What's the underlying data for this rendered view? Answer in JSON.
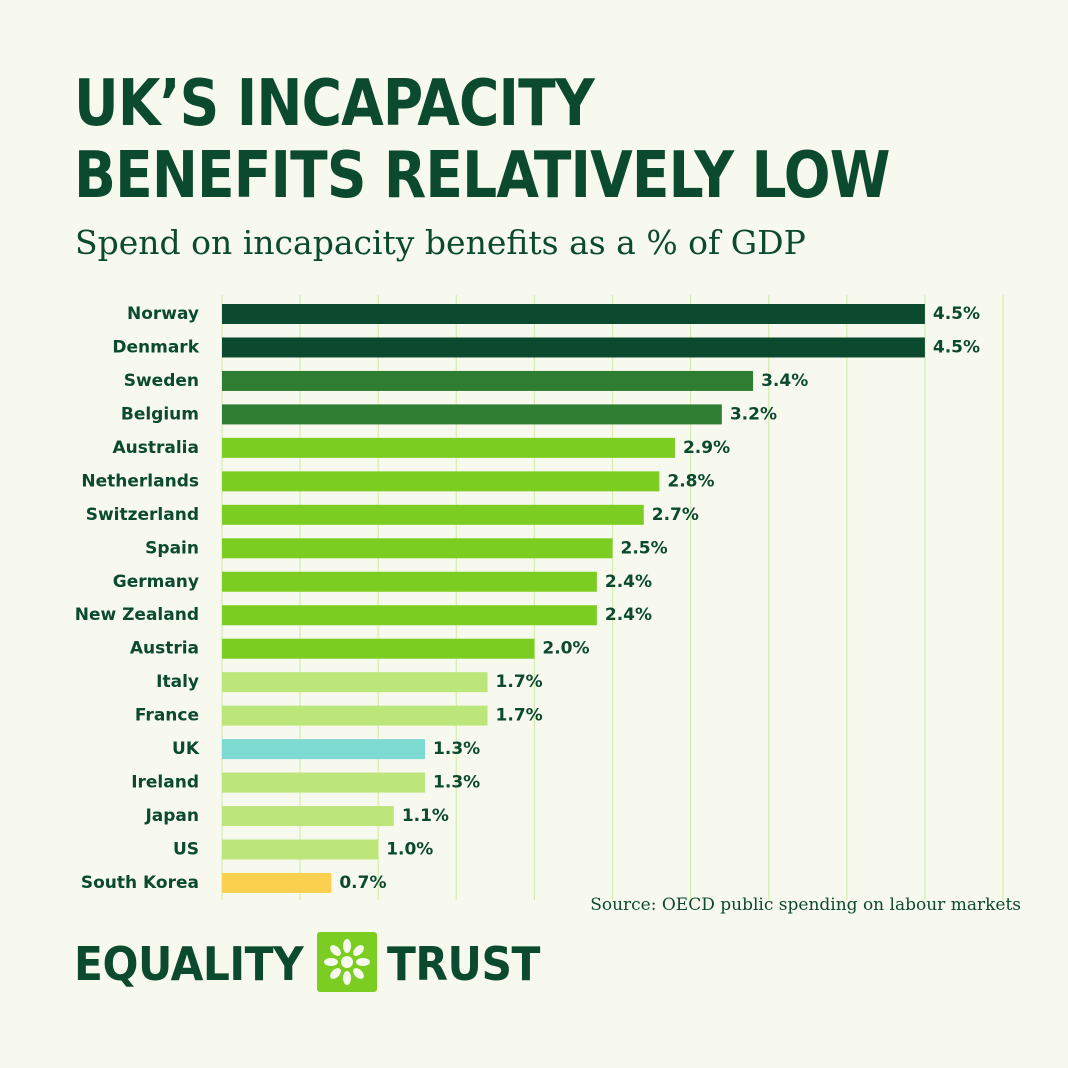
{
  "title": "UK’S INCAPACITY BENEFITS RELATIVELY LOW",
  "subtitle": "Spend on incapacity benefits as a % of GDP",
  "source": "Source: OECD public spending on labour markets",
  "logo": {
    "left_word": "EQUALITY",
    "right_word": "TRUST",
    "icon": "flower-icon"
  },
  "colors": {
    "background": "#f7f8ee",
    "text": "#0b4a2f",
    "gridline": "#d6ecb0",
    "tier_4_5": "#0b4a2f",
    "tier_3": "#2f7d32",
    "tier_2": "#7ccd22",
    "tier_1": "#bde67a",
    "uk": "#7ddbd3",
    "lowest": "#fcd04f"
  },
  "chart_data": {
    "type": "bar",
    "orientation": "horizontal",
    "title": "UK’S INCAPACITY BENEFITS RELATIVELY LOW",
    "subtitle": "Spend on incapacity benefits as a % of GDP",
    "unit": "%",
    "xlim": [
      0,
      5
    ],
    "grid": true,
    "categories": [
      "Norway",
      "Denmark",
      "Sweden",
      "Belgium",
      "Australia",
      "Netherlands",
      "Switzerland",
      "Spain",
      "Germany",
      "New Zealand",
      "Austria",
      "Italy",
      "France",
      "UK",
      "Ireland",
      "Japan",
      "US",
      "South Korea"
    ],
    "values": [
      4.5,
      4.5,
      3.4,
      3.2,
      2.9,
      2.8,
      2.7,
      2.5,
      2.4,
      2.4,
      2.0,
      1.7,
      1.7,
      1.3,
      1.3,
      1.1,
      1.0,
      0.7
    ],
    "labels": [
      "4.5%",
      "4.5%",
      "3.4%",
      "3.2%",
      "2.9%",
      "2.8%",
      "2.7%",
      "2.5%",
      "2.4%",
      "2.4%",
      "2.0%",
      "1.7%",
      "1.7%",
      "1.3%",
      "1.3%",
      "1.1%",
      "1.0%",
      "0.7%"
    ],
    "bar_colors": [
      "#0b4a2f",
      "#0b4a2f",
      "#2f7d32",
      "#2f7d32",
      "#7ccd22",
      "#7ccd22",
      "#7ccd22",
      "#7ccd22",
      "#7ccd22",
      "#7ccd22",
      "#7ccd22",
      "#bde67a",
      "#bde67a",
      "#7ddbd3",
      "#bde67a",
      "#bde67a",
      "#bde67a",
      "#fcd04f"
    ]
  }
}
